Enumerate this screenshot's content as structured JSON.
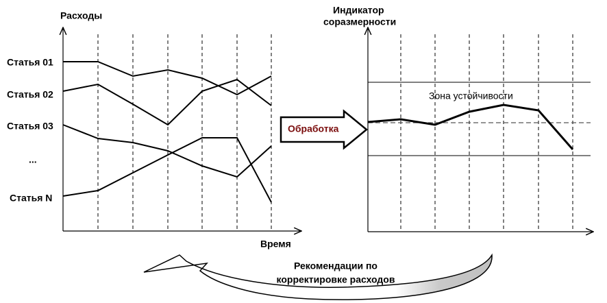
{
  "left_chart": {
    "y_label": "Расходы",
    "x_label": "Время",
    "items": [
      "Статья 01",
      "Статья 02",
      "Статья 03",
      "...",
      "Статья N"
    ]
  },
  "process": "Обработка",
  "right_chart": {
    "y_label": [
      "Индикатор",
      "соразмерности"
    ],
    "zone": "Зона устойчивости"
  },
  "feedback": [
    "Рекомендации по",
    "корректировке расходов"
  ]
}
